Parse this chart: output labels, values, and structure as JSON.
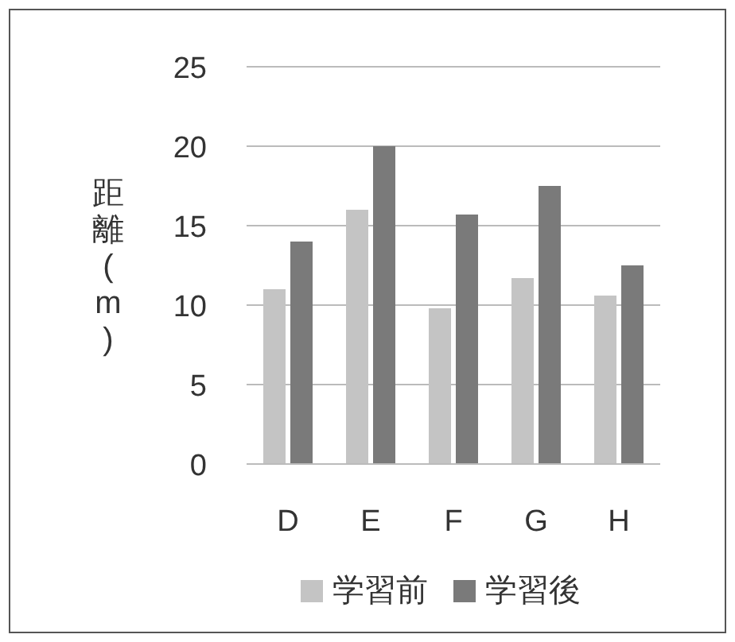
{
  "chart_data": {
    "type": "bar",
    "ylabel": "距離(m)",
    "categories": [
      "D",
      "E",
      "F",
      "G",
      "H"
    ],
    "series": [
      {
        "name": "学習前",
        "color": "#c4c4c4",
        "values": [
          11.0,
          16.0,
          9.8,
          11.7,
          10.6
        ]
      },
      {
        "name": "学習後",
        "color": "#7a7a7a",
        "values": [
          14.0,
          20.0,
          15.7,
          17.5,
          12.5
        ]
      }
    ],
    "ylim": [
      0,
      25
    ],
    "yticks": [
      0,
      5,
      10,
      15,
      20,
      25
    ],
    "grid": "y",
    "legend": "bottom"
  }
}
